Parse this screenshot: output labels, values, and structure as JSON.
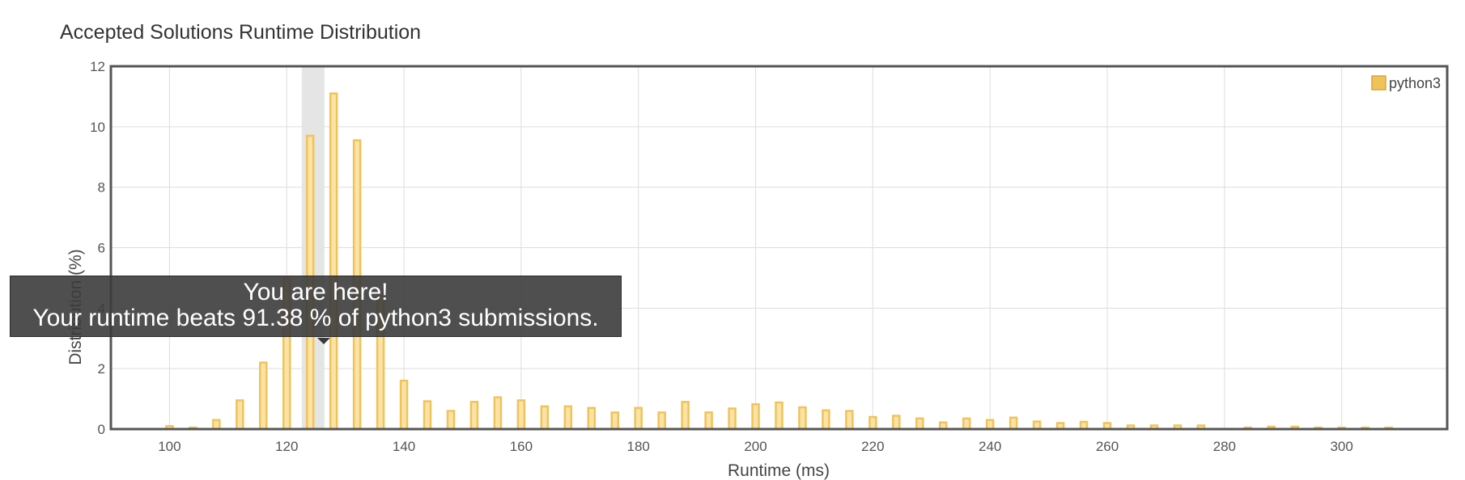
{
  "chart_data": {
    "type": "bar",
    "title": "Accepted Solutions Runtime Distribution",
    "xlabel": "Runtime (ms)",
    "ylabel": "Distribution (%)",
    "xlim": [
      90,
      318
    ],
    "ylim": [
      0,
      12
    ],
    "x_ticks": [
      100,
      120,
      140,
      160,
      180,
      200,
      220,
      240,
      260,
      280,
      300
    ],
    "y_ticks": [
      0,
      2,
      4,
      6,
      8,
      10,
      12
    ],
    "grid": true,
    "legend_position": "top-right",
    "highlight_x": 124.5,
    "series": [
      {
        "name": "python3",
        "color": "#f0c35a",
        "x": [
          100,
          104,
          108,
          112,
          116,
          120,
          124,
          128,
          132,
          136,
          140,
          144,
          148,
          152,
          156,
          160,
          164,
          168,
          172,
          176,
          180,
          184,
          188,
          192,
          196,
          200,
          204,
          208,
          212,
          216,
          220,
          224,
          228,
          232,
          236,
          240,
          244,
          248,
          252,
          256,
          260,
          264,
          268,
          272,
          276,
          280,
          284,
          288,
          292,
          296,
          300,
          304,
          308
        ],
        "values": [
          0.1,
          0.05,
          0.3,
          0.95,
          2.2,
          5.0,
          9.7,
          11.1,
          9.55,
          4.5,
          1.6,
          0.92,
          0.6,
          0.9,
          1.05,
          0.95,
          0.75,
          0.75,
          0.7,
          0.55,
          0.7,
          0.55,
          0.9,
          0.55,
          0.68,
          0.82,
          0.88,
          0.72,
          0.62,
          0.6,
          0.4,
          0.44,
          0.35,
          0.22,
          0.35,
          0.3,
          0.38,
          0.25,
          0.2,
          0.24,
          0.2,
          0.12,
          0.12,
          0.12,
          0.12,
          0,
          0.05,
          0.08,
          0.08,
          0.05,
          0.05,
          0.05,
          0.05
        ]
      }
    ]
  },
  "tooltip": {
    "line1": "You are here!",
    "line2": "Your runtime beats 91.38 % of python3 submissions."
  }
}
